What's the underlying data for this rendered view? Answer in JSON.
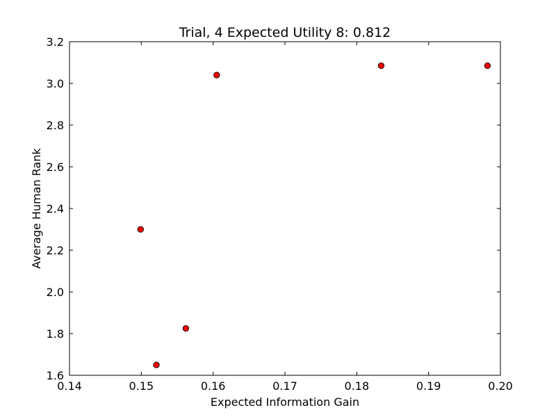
{
  "chart_data": {
    "type": "scatter",
    "title": "Trial, 4 Expected Utility 8: 0.812",
    "xlabel": "Expected Information Gain",
    "ylabel": "Average Human Rank",
    "xlim": [
      0.14,
      0.2
    ],
    "ylim": [
      1.6,
      3.2
    ],
    "xticks": [
      "0.14",
      "0.15",
      "0.16",
      "0.17",
      "0.18",
      "0.19",
      "0.20"
    ],
    "yticks": [
      "1.6",
      "1.8",
      "2.0",
      "2.2",
      "2.4",
      "2.6",
      "2.8",
      "3.0",
      "3.2"
    ],
    "grid": false,
    "marker_color": "#ff0000",
    "marker_edge_color": "#000000",
    "points": [
      {
        "x": 0.1499,
        "y": 2.3
      },
      {
        "x": 0.1521,
        "y": 1.65
      },
      {
        "x": 0.1562,
        "y": 1.825
      },
      {
        "x": 0.1605,
        "y": 3.04
      },
      {
        "x": 0.1834,
        "y": 3.085
      },
      {
        "x": 0.1982,
        "y": 3.085
      }
    ]
  }
}
